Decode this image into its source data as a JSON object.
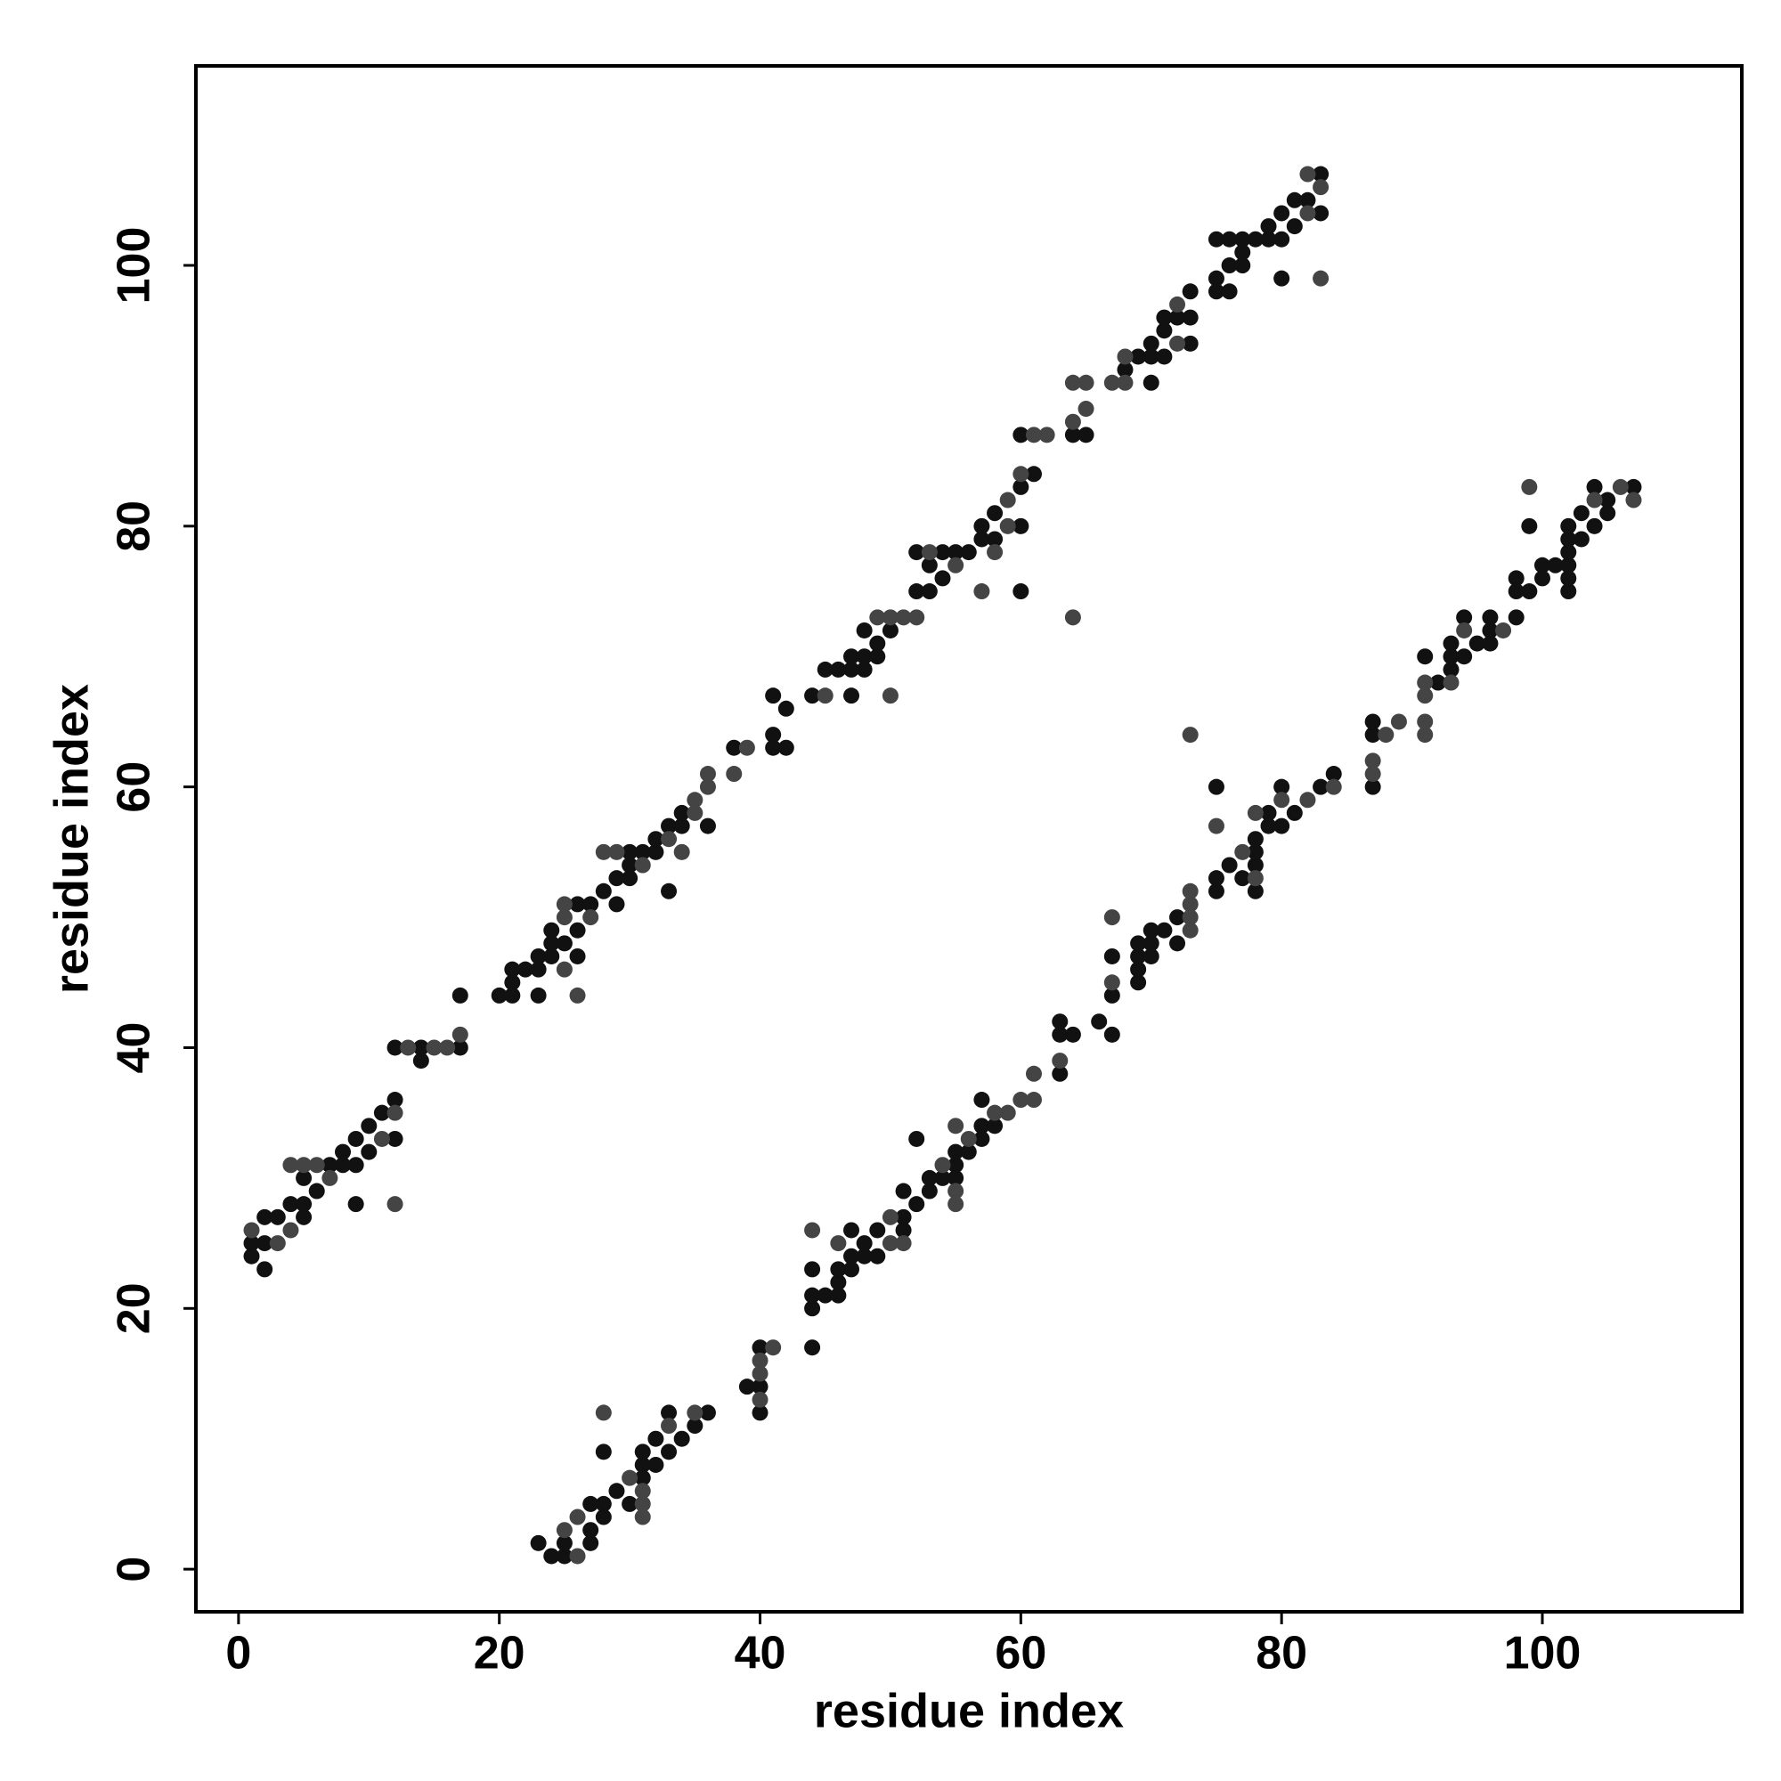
{
  "chart_data": {
    "type": "scatter",
    "xlabel": "residue index",
    "ylabel": "residue index",
    "xlim": [
      -3.27,
      115.3
    ],
    "ylim": [
      -3.27,
      115.3
    ],
    "xticks": [
      0,
      20,
      40,
      60,
      80,
      100
    ],
    "yticks": [
      0,
      20,
      40,
      60,
      80,
      100
    ],
    "series": [
      {
        "color": "#111111",
        "x": [
          1,
          1,
          2,
          2,
          2,
          3,
          4,
          5,
          5,
          5,
          6,
          7,
          8,
          8,
          9,
          9,
          9,
          10,
          10,
          11,
          12,
          12,
          12,
          14,
          14,
          17,
          17,
          20,
          21,
          21,
          21,
          22,
          23,
          23,
          23,
          24,
          24,
          24,
          25,
          26,
          26,
          26,
          27,
          28,
          29,
          29,
          30,
          30,
          30,
          31,
          32,
          32,
          33,
          33,
          34,
          34,
          36,
          38,
          41,
          41,
          41,
          42,
          42,
          44,
          45,
          46,
          47,
          47,
          47,
          48,
          48,
          48,
          49,
          49,
          50,
          52,
          52,
          53,
          53,
          54,
          54,
          55,
          56,
          57,
          57,
          58,
          58,
          60,
          60,
          60,
          60,
          61,
          64,
          65,
          68,
          69,
          70,
          70,
          70,
          71,
          71,
          71,
          72,
          73,
          73,
          73,
          75,
          75,
          75,
          76,
          76,
          76,
          77,
          77,
          77,
          78,
          79,
          79,
          80,
          80,
          80,
          81,
          81,
          82,
          83,
          83
        ],
        "values": [
          24,
          25,
          23,
          25,
          27,
          27,
          28,
          27,
          28,
          30,
          29,
          31,
          31,
          32,
          28,
          31,
          33,
          32,
          34,
          35,
          33,
          36,
          40,
          39,
          40,
          40,
          44,
          44,
          44,
          45,
          46,
          46,
          44,
          46,
          47,
          47,
          48,
          49,
          48,
          47,
          49,
          51,
          51,
          52,
          51,
          53,
          53,
          54,
          55,
          55,
          55,
          56,
          52,
          57,
          57,
          58,
          57,
          63,
          63,
          64,
          67,
          63,
          66,
          67,
          69,
          69,
          67,
          69,
          70,
          69,
          70,
          72,
          70,
          71,
          72,
          75,
          78,
          75,
          77,
          76,
          78,
          78,
          78,
          79,
          80,
          79,
          81,
          75,
          80,
          83,
          87,
          84,
          87,
          87,
          92,
          93,
          91,
          93,
          94,
          93,
          95,
          96,
          96,
          94,
          96,
          98,
          98,
          99,
          102,
          98,
          100,
          102,
          100,
          101,
          102,
          102,
          102,
          103,
          99,
          102,
          104,
          103,
          105,
          105,
          104,
          107
        ]
      },
      {
        "color": "#444444",
        "x": [
          1,
          3,
          4,
          4,
          5,
          6,
          7,
          11,
          12,
          12,
          13,
          15,
          16,
          17,
          25,
          25,
          25,
          26,
          27,
          28,
          29,
          31,
          33,
          34,
          35,
          35,
          36,
          36,
          38,
          39,
          45,
          49,
          50,
          50,
          51,
          52,
          53,
          55,
          57,
          58,
          59,
          59,
          60,
          61,
          62,
          64,
          64,
          64,
          65,
          65,
          67,
          68,
          68,
          72,
          72,
          82,
          82,
          83,
          83
        ],
        "values": [
          26,
          25,
          26,
          31,
          31,
          31,
          30,
          33,
          28,
          35,
          40,
          40,
          40,
          41,
          46,
          50,
          51,
          44,
          50,
          55,
          55,
          54,
          56,
          55,
          58,
          59,
          60,
          61,
          61,
          63,
          67,
          73,
          67,
          73,
          73,
          73,
          78,
          77,
          75,
          78,
          80,
          82,
          84,
          87,
          87,
          73,
          88,
          91,
          89,
          91,
          91,
          91,
          93,
          94,
          97,
          104,
          107,
          99,
          106
        ]
      },
      {
        "color": "#111111",
        "x": [
          24,
          25,
          23,
          25,
          27,
          27,
          28,
          27,
          28,
          30,
          29,
          31,
          31,
          32,
          28,
          31,
          33,
          32,
          34,
          35,
          33,
          36,
          40,
          39,
          40,
          40,
          44,
          44,
          44,
          45,
          46,
          46,
          44,
          46,
          47,
          47,
          48,
          49,
          48,
          47,
          49,
          51,
          51,
          52,
          51,
          53,
          53,
          54,
          55,
          55,
          55,
          56,
          52,
          57,
          57,
          58,
          57,
          63,
          63,
          64,
          67,
          63,
          66,
          67,
          69,
          69,
          67,
          69,
          70,
          69,
          70,
          72,
          70,
          71,
          72,
          75,
          78,
          75,
          77,
          76,
          78,
          78,
          78,
          79,
          80,
          79,
          81,
          75,
          80,
          83,
          87,
          84,
          87,
          87,
          92,
          93,
          91,
          93,
          94,
          93,
          95,
          96,
          96,
          94,
          96,
          98,
          98,
          99,
          102,
          98,
          100,
          102,
          100,
          101,
          102,
          102,
          102,
          103,
          99,
          102,
          104,
          103,
          105,
          105,
          104,
          107
        ],
        "values": [
          1,
          1,
          2,
          2,
          2,
          3,
          4,
          5,
          5,
          5,
          6,
          7,
          8,
          8,
          9,
          9,
          9,
          10,
          10,
          11,
          12,
          12,
          12,
          14,
          14,
          17,
          17,
          20,
          21,
          21,
          21,
          22,
          23,
          23,
          23,
          24,
          24,
          24,
          25,
          26,
          26,
          26,
          27,
          28,
          29,
          29,
          30,
          30,
          30,
          31,
          32,
          32,
          33,
          33,
          34,
          34,
          36,
          38,
          41,
          41,
          41,
          42,
          42,
          44,
          45,
          46,
          47,
          47,
          47,
          48,
          48,
          48,
          49,
          49,
          50,
          52,
          52,
          53,
          53,
          54,
          54,
          55,
          56,
          57,
          57,
          58,
          58,
          60,
          60,
          60,
          60,
          61,
          64,
          65,
          68,
          69,
          70,
          70,
          70,
          71,
          71,
          71,
          72,
          73,
          73,
          73,
          75,
          75,
          75,
          76,
          76,
          76,
          77,
          77,
          77,
          78,
          79,
          79,
          80,
          80,
          80,
          81,
          81,
          82,
          83,
          83
        ]
      },
      {
        "color": "#444444",
        "x": [
          26,
          25,
          26,
          31,
          31,
          31,
          30,
          33,
          28,
          35,
          40,
          40,
          40,
          41,
          46,
          50,
          51,
          44,
          50,
          55,
          55,
          54,
          56,
          55,
          58,
          59,
          60,
          61,
          61,
          63,
          67,
          73,
          67,
          73,
          73,
          73,
          78,
          77,
          75,
          78,
          80,
          82,
          84,
          87,
          87,
          73,
          88,
          91,
          89,
          91,
          91,
          91,
          93,
          94,
          97,
          104,
          107,
          99,
          106
        ],
        "values": [
          1,
          3,
          4,
          4,
          5,
          6,
          7,
          11,
          12,
          12,
          13,
          15,
          16,
          17,
          25,
          25,
          25,
          26,
          27,
          28,
          29,
          31,
          33,
          34,
          35,
          35,
          36,
          36,
          38,
          39,
          45,
          49,
          50,
          50,
          51,
          52,
          53,
          55,
          57,
          58,
          59,
          59,
          60,
          61,
          62,
          64,
          64,
          64,
          65,
          65,
          67,
          68,
          68,
          72,
          72,
          82,
          82,
          83,
          83
        ]
      }
    ]
  }
}
